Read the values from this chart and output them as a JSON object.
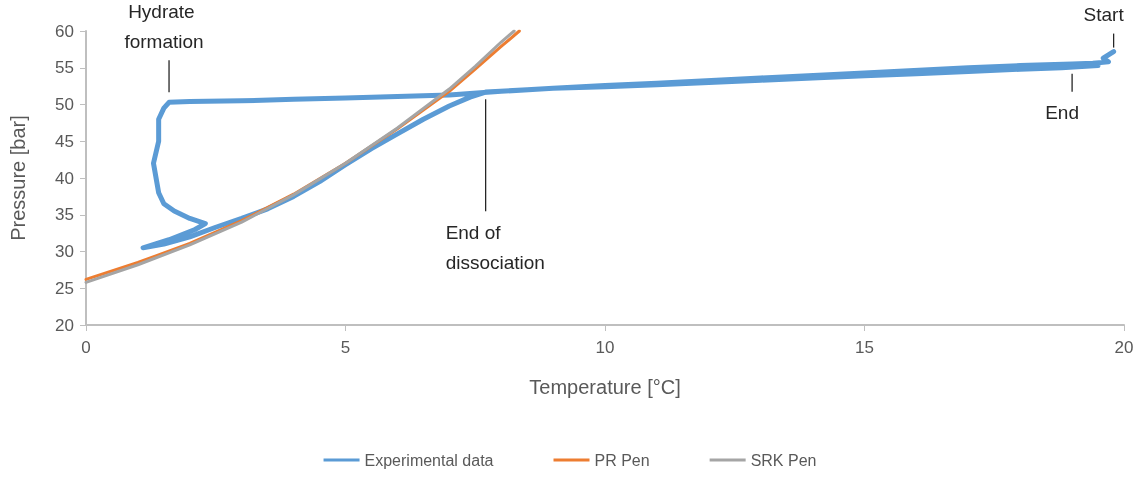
{
  "chart_data": {
    "type": "line",
    "xlabel": "Temperature [°C]",
    "ylabel": "Pressure [bar]",
    "xlim": [
      0,
      20
    ],
    "xticks": [
      0,
      5,
      10,
      15,
      20
    ],
    "ylim": [
      20,
      60
    ],
    "yticks": [
      20,
      25,
      30,
      35,
      40,
      45,
      50,
      55,
      60
    ],
    "legend": "bottom",
    "marker": "none",
    "line_style": "solid",
    "series": [
      {
        "name": "Experimental data",
        "color": "#5b9bd5",
        "x": [
          19.8,
          19.6,
          19.7,
          19.4,
          19.0,
          18,
          17,
          15,
          13,
          11,
          10,
          9,
          8,
          7,
          6,
          5,
          4,
          3,
          2,
          1.6,
          1.5,
          1.4,
          1.4,
          1.3,
          1.35,
          1.4,
          1.5,
          1.7,
          2.0,
          2.3,
          2.1,
          1.6,
          1.1,
          1.5,
          2.0,
          2.5,
          3.0,
          3.5,
          4.0,
          4.5,
          5.0,
          5.5,
          6.0,
          6.5,
          7.0,
          7.4,
          7.7,
          8.5,
          9,
          10,
          11,
          12,
          13,
          14,
          15,
          16,
          17,
          18,
          18.8,
          19.5
        ],
        "values": [
          57.2,
          56.3,
          55.8,
          55.6,
          55.5,
          55.3,
          55.0,
          54.3,
          53.6,
          52.9,
          52.6,
          52.2,
          51.8,
          51.3,
          51.1,
          50.9,
          50.7,
          50.5,
          50.4,
          50.3,
          49.5,
          48.0,
          45.0,
          42.0,
          40.0,
          38.0,
          36.5,
          35.5,
          34.5,
          33.8,
          33.0,
          31.6,
          30.5,
          31.0,
          32.0,
          33.3,
          34.5,
          35.8,
          37.5,
          39.5,
          41.8,
          44.0,
          46.0,
          48.0,
          49.8,
          51.0,
          51.7,
          52.0,
          52.2,
          52.4,
          52.7,
          53.0,
          53.3,
          53.6,
          53.9,
          54.2,
          54.5,
          54.8,
          55.0,
          55.3
        ]
      },
      {
        "name": "PR Pen",
        "color": "#ed7d31",
        "x": [
          0,
          1,
          2,
          3,
          4,
          5,
          6,
          7,
          7.5,
          8,
          8.35
        ],
        "values": [
          26.2,
          28.5,
          31.1,
          34.2,
          37.8,
          42.0,
          46.7,
          51.8,
          54.8,
          57.9,
          60
        ]
      },
      {
        "name": "SRK Pen",
        "color": "#a5a5a5",
        "x": [
          0,
          1,
          2,
          3,
          4,
          5,
          6,
          7,
          7.5,
          8,
          8.25
        ],
        "values": [
          25.8,
          28.2,
          30.9,
          34.0,
          37.7,
          42.0,
          46.8,
          52.1,
          55.2,
          58.5,
          60
        ]
      }
    ],
    "annotations": [
      {
        "text": "Hydrate formation",
        "x": 1.6,
        "y": 50.3
      },
      {
        "text": "End of dissociation",
        "x": 7.7,
        "y": 51.8
      },
      {
        "text": "Start",
        "x": 19.8,
        "y": 57.2
      },
      {
        "text": "End",
        "x": 19.0,
        "y": 55.0
      }
    ]
  }
}
